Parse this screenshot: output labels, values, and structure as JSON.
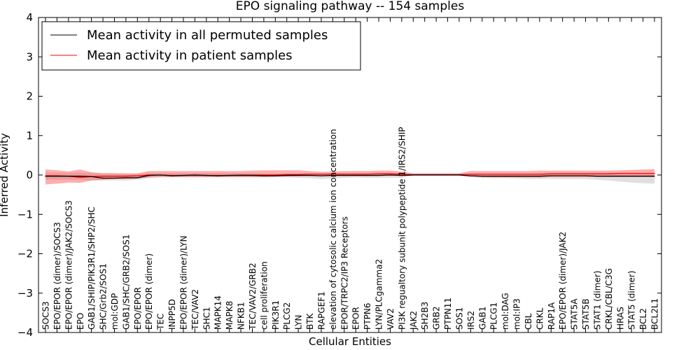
{
  "chart_data": {
    "type": "line",
    "title": "EPO signaling pathway -- 154 samples",
    "xlabel": "Cellular Entities",
    "ylabel": "Inferred Activity",
    "ylim": [
      -4,
      4
    ],
    "yticks": [
      "4",
      "3",
      "2",
      "1",
      "0",
      "−1",
      "−2",
      "−3",
      "−4"
    ],
    "grid": false,
    "legend_position": "top-left",
    "categories": [
      "SOCS3",
      "EPO/EPOR (dimer)/SOCS3",
      "EPO/EPOR (dimer)/JAK2/SOCS3",
      "EPO",
      "GAB1/SHIP/PIK3R1/SHP2/SHC",
      "SHC/Grb2/SOS1",
      "mol:GDP",
      "GAB1/SHC/GRB2/SOS1",
      "EPO/EPOR",
      "EPO/EPOR (dimer)",
      "TEC",
      "INPP5D",
      "EPO/EPOR (dimer)/LYN",
      "TEC/VAV2",
      "SHC1",
      "MAPK14",
      "MAPK8",
      "NFKB1",
      "TEC/VAV2/GRB2",
      "cell proliferation",
      "PIK3R1",
      "PLCG2",
      "LYN",
      "BTK",
      "RAPGEF1",
      "elevation of cytosolic calcium ion concentration",
      "EPOR/TRPC2/IP3 Receptors",
      "EPOR",
      "PTPN6",
      "LYN/PLCgamma2",
      "VAV2",
      "PI3K regualtory subunit polypeptide 1/IRS2/SHIP",
      "JAK2",
      "SH2B3",
      "GRB2",
      "PTPN11",
      "SOS1",
      "IRS2",
      "GAB1",
      "PLCG1",
      "mol:DAG",
      "mol:IP3",
      "CBL",
      "CRKL",
      "RAP1A",
      "EPO/EPOR (dimer)/JAK2",
      "STAT5A",
      "STAT5B",
      "STAT1 (dimer)",
      "CRKL/CBL/C3G",
      "HRAS",
      "STAT5 (dimer)",
      "BCL2",
      "BCL2L1"
    ],
    "series": [
      {
        "name": "Mean activity in all permuted samples",
        "color": "#000000",
        "values": [
          -0.03,
          -0.03,
          -0.03,
          -0.03,
          -0.04,
          -0.08,
          -0.08,
          -0.07,
          -0.07,
          -0.01,
          0.0,
          -0.02,
          -0.01,
          0.0,
          -0.01,
          -0.02,
          -0.01,
          -0.01,
          -0.01,
          -0.02,
          -0.02,
          -0.01,
          -0.01,
          -0.01,
          -0.02,
          -0.01,
          -0.01,
          -0.01,
          -0.01,
          -0.01,
          0.0,
          -0.01,
          0.0,
          0.0,
          0.0,
          0.0,
          0.0,
          -0.02,
          -0.03,
          -0.03,
          -0.03,
          -0.03,
          -0.03,
          -0.03,
          -0.02,
          -0.02,
          -0.02,
          -0.02,
          -0.03,
          -0.03,
          -0.03,
          -0.03,
          -0.03,
          -0.03
        ],
        "band_lower": [
          -0.12,
          -0.12,
          -0.12,
          -0.12,
          -0.14,
          -0.14,
          -0.14,
          -0.14,
          -0.12,
          -0.08,
          -0.06,
          -0.06,
          -0.06,
          -0.06,
          -0.06,
          -0.06,
          -0.06,
          -0.06,
          -0.06,
          -0.06,
          -0.06,
          -0.06,
          -0.07,
          -0.08,
          -0.1,
          -0.09,
          -0.07,
          -0.06,
          -0.07,
          -0.07,
          -0.07,
          -0.07,
          -0.02,
          -0.02,
          -0.02,
          -0.02,
          -0.02,
          -0.06,
          -0.08,
          -0.08,
          -0.08,
          -0.09,
          -0.1,
          -0.1,
          -0.1,
          -0.1,
          -0.1,
          -0.1,
          -0.12,
          -0.14,
          -0.17,
          -0.19,
          -0.21,
          -0.22
        ],
        "band_upper": [
          0.06,
          0.06,
          0.06,
          0.06,
          0.05,
          0.03,
          0.03,
          0.03,
          0.03,
          0.05,
          0.05,
          0.05,
          0.05,
          0.05,
          0.05,
          0.05,
          0.05,
          0.05,
          0.05,
          0.04,
          0.04,
          0.04,
          0.04,
          0.04,
          0.03,
          0.04,
          0.04,
          0.04,
          0.04,
          0.04,
          0.04,
          0.04,
          0.02,
          0.02,
          0.02,
          0.02,
          0.02,
          0.03,
          0.03,
          0.03,
          0.03,
          0.03,
          0.03,
          0.04,
          0.04,
          0.04,
          0.04,
          0.04,
          0.04,
          0.04,
          0.04,
          0.04,
          0.04,
          0.04
        ]
      },
      {
        "name": "Mean activity in patient samples",
        "color": "#ff0000",
        "values": [
          -0.02,
          -0.02,
          -0.03,
          -0.06,
          -0.04,
          -0.03,
          -0.03,
          -0.03,
          -0.02,
          0.0,
          0.0,
          -0.01,
          -0.01,
          -0.01,
          -0.01,
          -0.01,
          -0.01,
          0.0,
          0.0,
          0.0,
          0.0,
          0.01,
          0.01,
          0.02,
          0.02,
          0.02,
          0.02,
          0.02,
          0.02,
          0.03,
          0.03,
          0.02,
          0.01,
          0.01,
          0.01,
          0.01,
          0.01,
          0.02,
          0.02,
          0.02,
          0.02,
          0.02,
          0.02,
          0.02,
          0.03,
          0.03,
          0.03,
          0.03,
          0.03,
          0.03,
          0.04,
          0.04,
          0.04,
          0.04
        ],
        "band_lower": [
          -0.24,
          -0.22,
          -0.19,
          -0.2,
          -0.14,
          -0.12,
          -0.1,
          -0.1,
          -0.09,
          -0.06,
          -0.05,
          -0.05,
          -0.05,
          -0.05,
          -0.05,
          -0.05,
          -0.05,
          -0.05,
          -0.05,
          -0.05,
          -0.04,
          -0.04,
          -0.03,
          -0.02,
          -0.02,
          -0.02,
          -0.02,
          -0.02,
          -0.02,
          -0.02,
          -0.02,
          -0.02,
          -0.01,
          -0.01,
          -0.01,
          -0.01,
          -0.01,
          -0.04,
          -0.05,
          -0.06,
          -0.06,
          -0.06,
          -0.06,
          -0.06,
          -0.05,
          -0.05,
          -0.05,
          -0.05,
          -0.05,
          -0.05,
          -0.05,
          -0.05,
          -0.05,
          -0.05
        ],
        "band_upper": [
          0.14,
          0.12,
          0.09,
          0.14,
          0.07,
          0.05,
          0.05,
          0.04,
          0.04,
          0.1,
          0.1,
          0.1,
          0.1,
          0.1,
          0.1,
          0.1,
          0.1,
          0.1,
          0.11,
          0.12,
          0.12,
          0.12,
          0.12,
          0.1,
          0.08,
          0.09,
          0.1,
          0.1,
          0.1,
          0.11,
          0.11,
          0.09,
          0.04,
          0.04,
          0.04,
          0.04,
          0.04,
          0.1,
          0.1,
          0.1,
          0.1,
          0.1,
          0.1,
          0.11,
          0.11,
          0.11,
          0.11,
          0.11,
          0.11,
          0.11,
          0.12,
          0.13,
          0.14,
          0.15
        ]
      }
    ]
  }
}
